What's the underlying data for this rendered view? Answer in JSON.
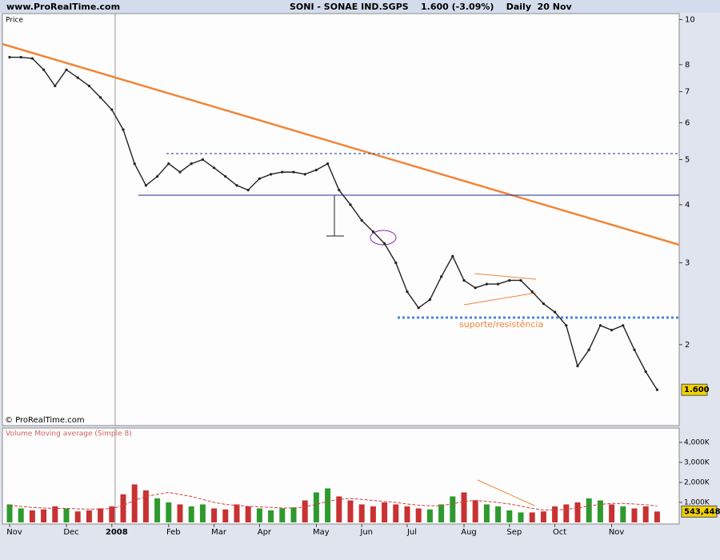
{
  "site": "www.ProRealTime.com",
  "copyright": "© ProRealTime.com",
  "chart_data": [
    {
      "type": "line",
      "title": "SONI - SONAE IND.SGPS    1.600 (-3.09%)    Daily  20 Nov",
      "panel_label": "Price",
      "color": "#222222",
      "log_scale": true,
      "grid": false,
      "values": [
        8.3,
        8.3,
        8.25,
        7.8,
        7.2,
        7.8,
        7.5,
        7.2,
        6.8,
        6.4,
        5.8,
        4.9,
        4.4,
        4.6,
        4.9,
        4.7,
        4.9,
        5.0,
        4.8,
        4.6,
        4.4,
        4.3,
        4.55,
        4.65,
        4.7,
        4.7,
        4.65,
        4.75,
        4.9,
        4.3,
        4.0,
        3.7,
        3.5,
        3.3,
        3.0,
        2.6,
        2.4,
        2.5,
        2.8,
        3.1,
        2.75,
        2.65,
        2.7,
        2.7,
        2.75,
        2.75,
        2.6,
        2.45,
        2.35,
        2.2,
        1.8,
        1.95,
        2.2,
        2.15,
        2.2,
        1.95,
        1.75,
        1.6
      ],
      "ylim": [
        1.34,
        10.3
      ],
      "yticks": [
        10,
        8,
        7,
        6,
        5,
        4,
        3,
        2
      ],
      "last_marker": {
        "value": 1.6,
        "label": "1.600"
      },
      "annotations": [
        "suporte/resistência"
      ]
    },
    {
      "type": "bar",
      "panel_label": "Volume",
      "up_color": "#2e9a2e",
      "down_color": "#c83232",
      "categories": [
        "Nov",
        null,
        null,
        null,
        null,
        "Dec",
        null,
        null,
        null,
        "2008",
        null,
        null,
        null,
        null,
        "Feb",
        null,
        null,
        null,
        "Mar",
        null,
        null,
        null,
        "Apr",
        null,
        null,
        null,
        null,
        "May",
        null,
        null,
        null,
        "Jun",
        null,
        null,
        null,
        "Jul",
        null,
        null,
        null,
        null,
        "Aug",
        null,
        null,
        null,
        "Sep",
        null,
        null,
        null,
        "Oct",
        null,
        null,
        null,
        null,
        "Nov",
        null,
        null,
        null,
        null
      ],
      "values": [
        900000,
        700000,
        600000,
        650000,
        800000,
        700000,
        550000,
        600000,
        700000,
        800000,
        1400000,
        1900000,
        1600000,
        1200000,
        1000000,
        900000,
        800000,
        900000,
        700000,
        650000,
        900000,
        800000,
        700000,
        600000,
        700000,
        750000,
        1100000,
        1500000,
        1700000,
        1300000,
        1100000,
        900000,
        800000,
        1000000,
        900000,
        800000,
        700000,
        650000,
        900000,
        1300000,
        1500000,
        1100000,
        900000,
        800000,
        600000,
        500000,
        500000,
        550000,
        800000,
        900000,
        1000000,
        1200000,
        1100000,
        900000,
        800000,
        700000,
        800000,
        543448
      ],
      "moving_average": {
        "name": "Volume Moving average (Simple 8)",
        "color": "#d04040",
        "values": [
          850000,
          800000,
          750000,
          720000,
          700000,
          700000,
          680000,
          660000,
          670000,
          690000,
          850000,
          1100000,
          1300000,
          1400000,
          1500000,
          1400000,
          1300000,
          1150000,
          1000000,
          900000,
          850000,
          800000,
          780000,
          750000,
          720000,
          720000,
          780000,
          900000,
          1050000,
          1150000,
          1200000,
          1150000,
          1100000,
          1050000,
          1000000,
          920000,
          860000,
          830000,
          840000,
          930000,
          1050000,
          1100000,
          1050000,
          1000000,
          920000,
          820000,
          700000,
          620000,
          620000,
          650000,
          720000,
          820000,
          900000,
          950000,
          950000,
          920000,
          880000,
          820000
        ]
      },
      "ylim": [
        0,
        4600000
      ],
      "yticks": [
        {
          "value": 4000000,
          "label": "4,000K"
        },
        {
          "value": 3000000,
          "label": "3,000K"
        },
        {
          "value": 2000000,
          "label": "2,000K"
        },
        {
          "value": 1000000,
          "label": "1,000K"
        }
      ],
      "last_marker": {
        "value": 543448,
        "label": "543,448"
      }
    }
  ]
}
